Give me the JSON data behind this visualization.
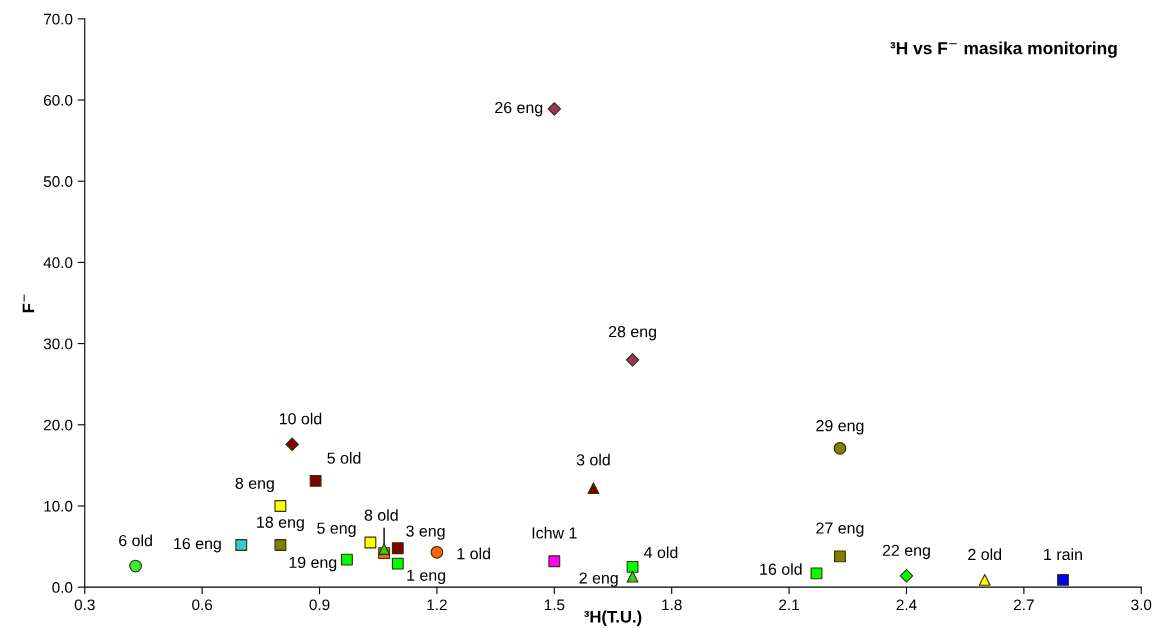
{
  "chart_data": {
    "type": "scatter",
    "title": "³H vs F$^{−}$ masika monitoring",
    "xlabel": "³H(T.U.)",
    "ylabel": "F$^{−}$",
    "xlim": [
      0.3,
      3.0
    ],
    "xticks": [
      0.3,
      0.6,
      0.9,
      1.2,
      1.5,
      1.8,
      2.1,
      2.4,
      2.7,
      {
        "value": 3,
        "label": "3.0"
      }
    ],
    "ylim": [
      0,
      70
    ],
    "yticks": [
      {
        "value": 0,
        "label": "0.0"
      },
      {
        "value": 10,
        "label": "10.0"
      },
      {
        "value": 20,
        "label": "20.0"
      },
      {
        "value": 30,
        "label": "30.0"
      },
      {
        "value": 40,
        "label": "40.0"
      },
      {
        "value": 50,
        "label": "50.0"
      },
      {
        "value": 60,
        "label": "60.0"
      },
      {
        "value": 70,
        "label": "70.0"
      }
    ],
    "grid": false,
    "legend": false,
    "series": [
      {
        "name": "6 old",
        "color": "#33ee33",
        "marker": "circle",
        "x": [
          0.43
        ],
        "values": [
          2.6
        ]
      },
      {
        "name": "16 eng",
        "color": "#33cccc",
        "marker": "square",
        "x": [
          0.7
        ],
        "values": [
          5.2
        ]
      },
      {
        "name": "8 eng",
        "color": "#ffff00",
        "marker": "square",
        "x": [
          0.8
        ],
        "values": [
          10.0
        ]
      },
      {
        "name": "18 eng",
        "color": "#808000",
        "marker": "square",
        "x": [
          0.8
        ],
        "values": [
          5.2
        ]
      },
      {
        "name": "10 old",
        "color": "#800000",
        "marker": "diamond",
        "x": [
          0.83
        ],
        "values": [
          17.6
        ]
      },
      {
        "name": "5 old",
        "color": "#800000",
        "marker": "square",
        "x": [
          0.89
        ],
        "values": [
          13.1
        ]
      },
      {
        "name": "19 eng",
        "color": "#00ff00",
        "marker": "square",
        "x": [
          0.97
        ],
        "values": [
          3.4
        ]
      },
      {
        "name": "5 eng",
        "color": "#ffff00",
        "marker": "square",
        "x": [
          1.03
        ],
        "values": [
          5.5
        ]
      },
      {
        "name": "8 old",
        "color": "#33cc33",
        "marker": "triangle",
        "x": [
          1.065
        ],
        "values": [
          4.7
        ]
      },
      {
        "color": "#ff6600",
        "marker": "square",
        "x": [
          1.065
        ],
        "values": [
          4.2
        ]
      },
      {
        "name": "3 eng",
        "color": "#800000",
        "marker": "square",
        "x": [
          1.1
        ],
        "values": [
          4.8
        ]
      },
      {
        "name": "1 eng",
        "color": "#00ff00",
        "marker": "square",
        "x": [
          1.1
        ],
        "values": [
          2.9
        ]
      },
      {
        "name": "1 old",
        "color": "#ff6600",
        "marker": "circle",
        "x": [
          1.2
        ],
        "values": [
          4.3
        ]
      },
      {
        "name": "Ichw 1",
        "color": "#ff00ff",
        "marker": "square",
        "x": [
          1.5
        ],
        "values": [
          3.2
        ]
      },
      {
        "name": "3 old",
        "color": "#800000",
        "marker": "triangle",
        "x": [
          1.6
        ],
        "values": [
          12.2
        ]
      },
      {
        "name": "4 old",
        "color": "#00ff00",
        "marker": "square",
        "x": [
          1.7
        ],
        "values": [
          2.5
        ]
      },
      {
        "name": "2 eng",
        "color": "#33cc33",
        "marker": "triangle",
        "x": [
          1.7
        ],
        "values": [
          1.3
        ]
      },
      {
        "name": "26 eng",
        "color": "#993366",
        "marker": "diamond",
        "x": [
          1.5
        ],
        "values": [
          58.9
        ]
      },
      {
        "name": "28 eng",
        "color": "#993366",
        "marker": "diamond",
        "x": [
          1.7
        ],
        "values": [
          28.0
        ]
      },
      {
        "name": "29 eng",
        "color": "#808000",
        "marker": "circle",
        "x": [
          2.23
        ],
        "values": [
          17.1
        ]
      },
      {
        "name": "27 eng",
        "color": "#808000",
        "marker": "square",
        "x": [
          2.23
        ],
        "values": [
          3.8
        ]
      },
      {
        "name": "16 old",
        "color": "#00ff00",
        "marker": "square",
        "x": [
          2.17
        ],
        "values": [
          1.7
        ]
      },
      {
        "name": "22 eng",
        "color": "#00ff00",
        "marker": "diamond",
        "x": [
          2.4
        ],
        "values": [
          1.4
        ]
      },
      {
        "name": "2 old",
        "color": "#ffff00",
        "marker": "triangle",
        "x": [
          2.6
        ],
        "values": [
          0.9
        ]
      },
      {
        "name": "1 rain",
        "color": "#0000ff",
        "marker": "square",
        "x": [
          2.8
        ],
        "values": [
          0.9
        ]
      }
    ]
  }
}
